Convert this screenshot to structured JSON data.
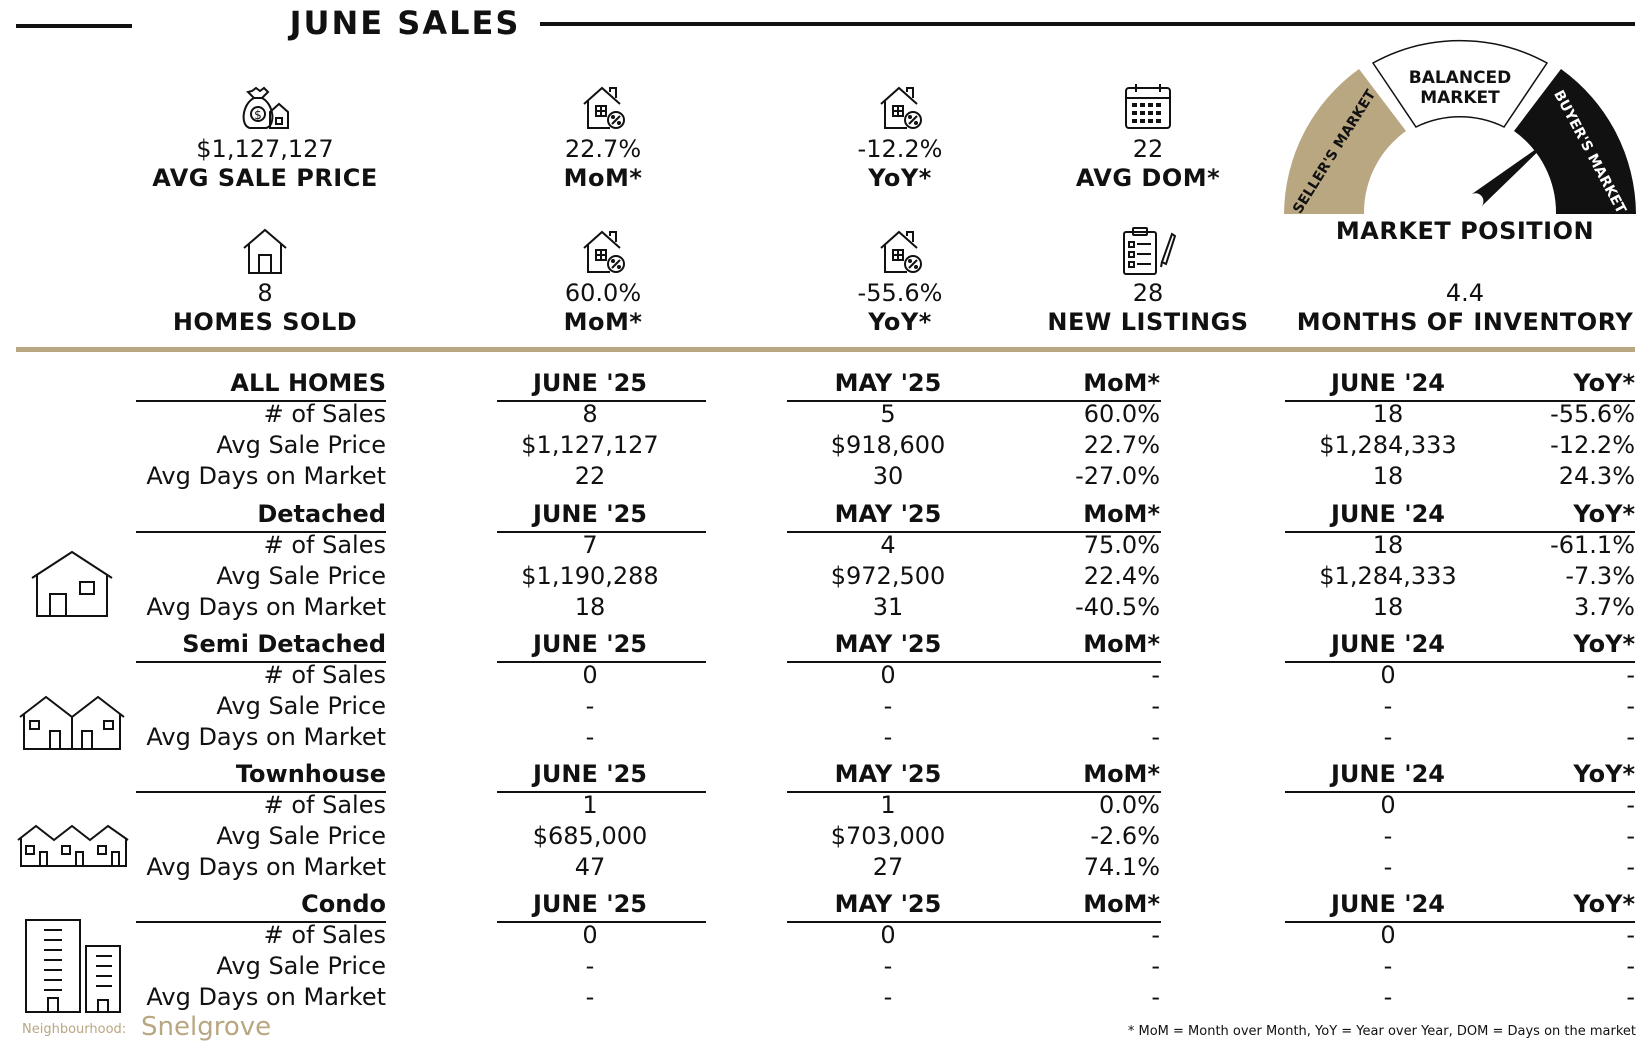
{
  "title": "JUNE SALES",
  "kpis_row1": [
    {
      "icon": "money-bag-house-icon",
      "value": "$1,127,127",
      "label": "AVG SALE PRICE"
    },
    {
      "icon": "house-percent-icon",
      "value": "22.7%",
      "label": "MoM*"
    },
    {
      "icon": "house-percent-icon",
      "value": "-12.2%",
      "label": "YoY*"
    },
    {
      "icon": "calendar-icon",
      "value": "22",
      "label": "AVG DOM*"
    }
  ],
  "kpis_row2": [
    {
      "icon": "house-icon",
      "value": "8",
      "label": "HOMES SOLD"
    },
    {
      "icon": "house-percent-icon",
      "value": "60.0%",
      "label": "MoM*"
    },
    {
      "icon": "house-percent-icon",
      "value": "-55.6%",
      "label": "YoY*"
    },
    {
      "icon": "clipboard-pen-icon",
      "value": "28",
      "label": "NEW LISTINGS"
    },
    {
      "icon": "",
      "value": "4.4",
      "label": "MONTHS OF INVENTORY"
    }
  ],
  "gauge": {
    "label": "MARKET POSITION",
    "seller": "SELLER'S MARKET",
    "balanced_1": "BALANCED",
    "balanced_2": "MARKET",
    "buyer": "BUYER'S MARKET",
    "position": 0.78,
    "colors": {
      "seller": "#b9a782",
      "balanced": "#ffffff",
      "buyer": "#111111"
    }
  },
  "columns": [
    "JUNE '25",
    "MAY '25",
    "MoM*",
    "JUNE '24",
    "YoY*"
  ],
  "sections": [
    {
      "name": "ALL HOMES",
      "icon": "",
      "rows": [
        {
          "label": "# of Sales",
          "values": [
            "8",
            "5",
            "60.0%",
            "18",
            "-55.6%"
          ]
        },
        {
          "label": "Avg Sale Price",
          "values": [
            "$1,127,127",
            "$918,600",
            "22.7%",
            "$1,284,333",
            "-12.2%"
          ]
        },
        {
          "label": "Avg Days on Market",
          "values": [
            "22",
            "30",
            "-27.0%",
            "18",
            "24.3%"
          ]
        }
      ]
    },
    {
      "name": "Detached",
      "icon": "detached-house-icon",
      "rows": [
        {
          "label": "# of Sales",
          "values": [
            "7",
            "4",
            "75.0%",
            "18",
            "-61.1%"
          ]
        },
        {
          "label": "Avg Sale Price",
          "values": [
            "$1,190,288",
            "$972,500",
            "22.4%",
            "$1,284,333",
            "-7.3%"
          ]
        },
        {
          "label": "Avg Days on Market",
          "values": [
            "18",
            "31",
            "-40.5%",
            "18",
            "3.7%"
          ]
        }
      ]
    },
    {
      "name": "Semi Detached",
      "icon": "semi-detached-icon",
      "rows": [
        {
          "label": "# of Sales",
          "values": [
            "0",
            "0",
            "-",
            "0",
            "-"
          ]
        },
        {
          "label": "Avg Sale Price",
          "values": [
            "-",
            "-",
            "-",
            "-",
            "-"
          ]
        },
        {
          "label": "Avg Days on Market",
          "values": [
            "-",
            "-",
            "-",
            "-",
            "-"
          ]
        }
      ]
    },
    {
      "name": "Townhouse",
      "icon": "townhouse-icon",
      "rows": [
        {
          "label": "# of Sales",
          "values": [
            "1",
            "1",
            "0.0%",
            "0",
            "-"
          ]
        },
        {
          "label": "Avg Sale Price",
          "values": [
            "$685,000",
            "$703,000",
            "-2.6%",
            "-",
            "-"
          ]
        },
        {
          "label": "Avg Days on Market",
          "values": [
            "47",
            "27",
            "74.1%",
            "-",
            "-"
          ]
        }
      ]
    },
    {
      "name": "Condo",
      "icon": "condo-building-icon",
      "rows": [
        {
          "label": "# of Sales",
          "values": [
            "0",
            "0",
            "-",
            "0",
            "-"
          ]
        },
        {
          "label": "Avg Sale Price",
          "values": [
            "-",
            "-",
            "-",
            "-",
            "-"
          ]
        },
        {
          "label": "Avg Days on Market",
          "values": [
            "-",
            "-",
            "-",
            "-",
            "-"
          ]
        }
      ]
    }
  ],
  "footer": {
    "neighbourhood_label": "Neighbourhood:",
    "neighbourhood_name": "Snelgrove",
    "note": "* MoM = Month over Month, YoY = Year over Year, DOM = Days on the market"
  },
  "accent_color": "#b9a782"
}
